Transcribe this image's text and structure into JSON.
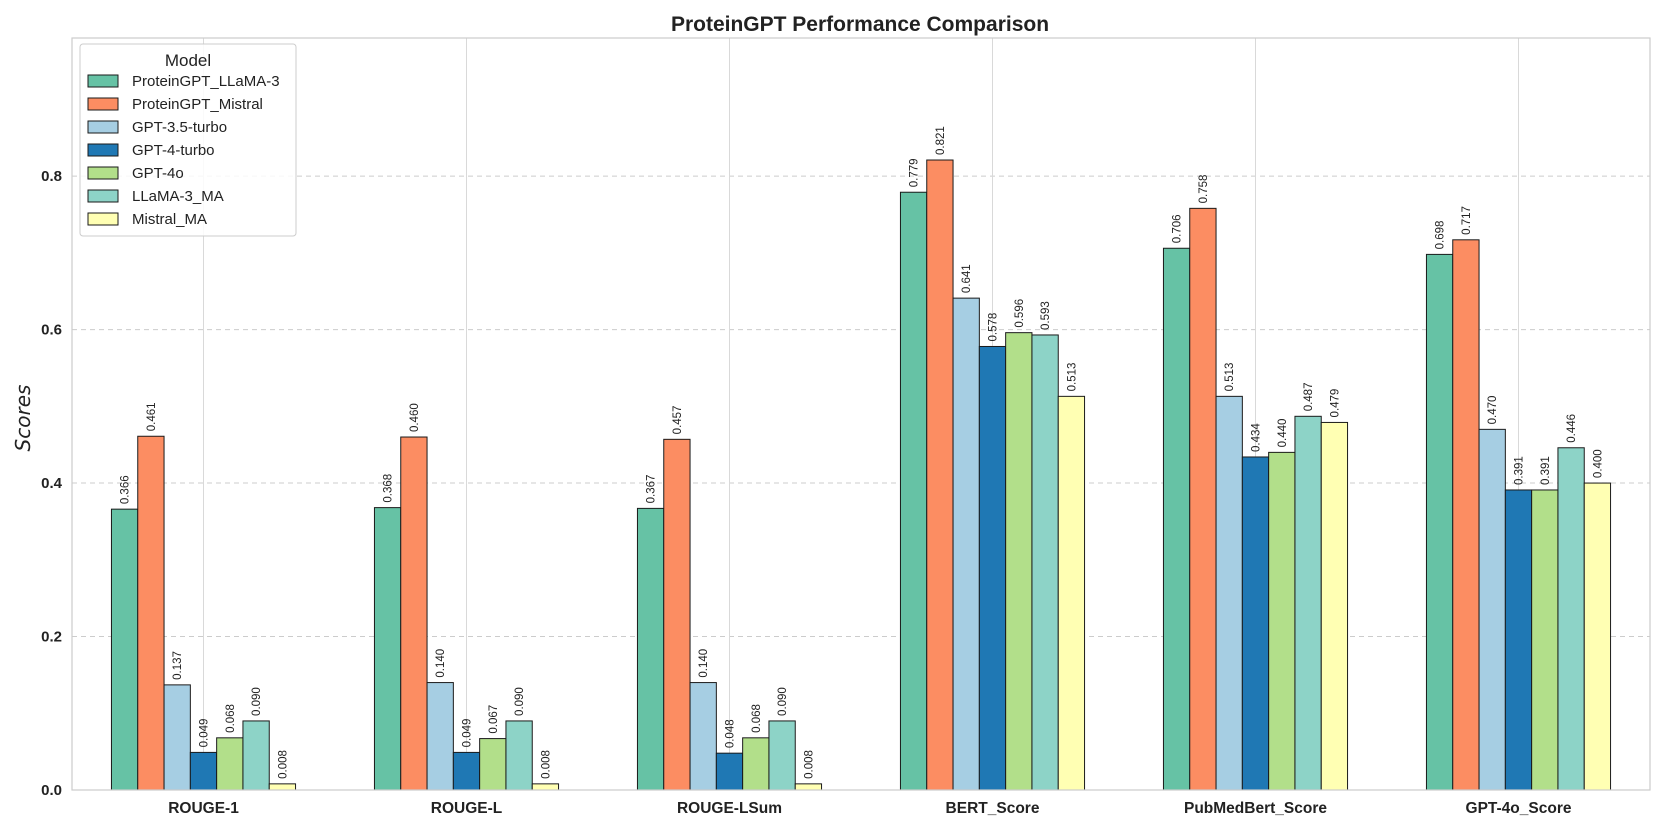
{
  "chart_data": {
    "type": "bar",
    "title": "ProteinGPT Performance Comparison",
    "xlabel": "",
    "ylabel": "Scores",
    "ylim": [
      0,
      0.98
    ],
    "yticks": [
      "0.0",
      "0.2",
      "0.4",
      "0.6",
      "0.8"
    ],
    "grid": true,
    "legend_title": "Model",
    "legend_position": "top-left",
    "categories": [
      "ROUGE-1",
      "ROUGE-L",
      "ROUGE-LSum",
      "BERT_Score",
      "PubMedBert_Score",
      "GPT-4o_Score"
    ],
    "series": [
      {
        "name": "ProteinGPT_LLaMA-3",
        "color": "#66c2a5",
        "values": [
          0.366,
          0.368,
          0.367,
          0.779,
          0.706,
          0.698
        ],
        "labels": [
          "0.366",
          "0.368",
          "0.367",
          "0.779",
          "0.706",
          "0.698"
        ]
      },
      {
        "name": "ProteinGPT_Mistral",
        "color": "#fc8d62",
        "values": [
          0.461,
          0.46,
          0.457,
          0.821,
          0.758,
          0.717
        ],
        "labels": [
          "0.461",
          "0.460",
          "0.457",
          "0.821",
          "0.758",
          "0.717"
        ]
      },
      {
        "name": "GPT-3.5-turbo",
        "color": "#a6cee3",
        "values": [
          0.137,
          0.14,
          0.14,
          0.641,
          0.513,
          0.47
        ],
        "labels": [
          "0.137",
          "0.140",
          "0.140",
          "0.641",
          "0.513",
          "0.470"
        ]
      },
      {
        "name": "GPT-4-turbo",
        "color": "#1f78b4",
        "values": [
          0.049,
          0.049,
          0.048,
          0.578,
          0.434,
          0.391
        ],
        "labels": [
          "0.049",
          "0.049",
          "0.048",
          "0.578",
          "0.434",
          "0.391"
        ]
      },
      {
        "name": "GPT-4o",
        "color": "#b2df8a",
        "values": [
          0.068,
          0.067,
          0.068,
          0.596,
          0.44,
          0.391
        ],
        "labels": [
          "0.068",
          "0.067",
          "0.068",
          "0.596",
          "0.440",
          "0.391"
        ]
      },
      {
        "name": "LLaMA-3_MA",
        "color": "#8dd3c7",
        "values": [
          0.09,
          0.09,
          0.09,
          0.593,
          0.487,
          0.446
        ],
        "labels": [
          "0.090",
          "0.090",
          "0.090",
          "0.593",
          "0.487",
          "0.446"
        ]
      },
      {
        "name": "Mistral_MA",
        "color": "#ffffb3",
        "values": [
          0.008,
          0.008,
          0.008,
          0.513,
          0.479,
          0.4
        ],
        "labels": [
          "0.008",
          "0.008",
          "0.008",
          "0.513",
          "0.479",
          "0.400"
        ]
      }
    ]
  }
}
